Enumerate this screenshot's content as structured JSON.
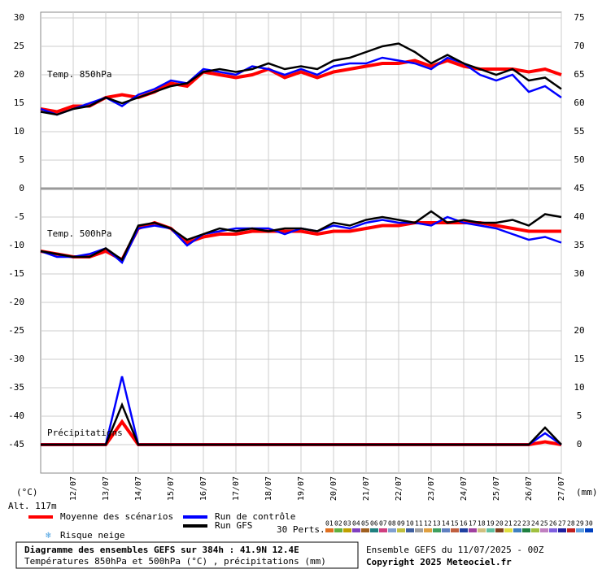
{
  "chart_data": {
    "type": "line",
    "title": "Diagramme des ensembles GEFS sur 384h : 41.9N 12.4E",
    "subtitle": "Températures 850hPa et 500hPa (°C) , précipitations (mm)",
    "run": "Ensemble GEFS du 11/07/2025 - 00Z",
    "copyright": "Copyright 2025 Meteociel.fr",
    "ylabel": "(°C)",
    "y2label": "(mm)",
    "altitude": "Alt. 117m",
    "ylim": [
      -50,
      31
    ],
    "yticks": [
      30,
      25,
      20,
      15,
      10,
      5,
      0,
      -5,
      -10,
      -15,
      -20,
      -25,
      -30,
      -35,
      -40,
      -45
    ],
    "y2ticks": [
      {
        "value": 30,
        "label": "75"
      },
      {
        "value": 25,
        "label": "70"
      },
      {
        "value": 20,
        "label": "65"
      },
      {
        "value": 15,
        "label": "60"
      },
      {
        "value": 10,
        "label": "55"
      },
      {
        "value": 5,
        "label": "50"
      },
      {
        "value": 0,
        "label": "45"
      },
      {
        "value": -5,
        "label": "40"
      },
      {
        "value": -10,
        "label": "35"
      },
      {
        "value": -15,
        "label": "30"
      }
    ],
    "xlim": [
      0,
      384
    ],
    "xticks": [
      {
        "value": 24,
        "label": "12/07"
      },
      {
        "value": 48,
        "label": "13/07"
      },
      {
        "value": 72,
        "label": "14/07"
      },
      {
        "value": 96,
        "label": "15/07"
      },
      {
        "value": 120,
        "label": "16/07"
      },
      {
        "value": 144,
        "label": "17/07"
      },
      {
        "value": 168,
        "label": "18/07"
      },
      {
        "value": 192,
        "label": "19/07"
      },
      {
        "value": 216,
        "label": "20/07"
      },
      {
        "value": 240,
        "label": "21/07"
      },
      {
        "value": 264,
        "label": "22/07"
      },
      {
        "value": 288,
        "label": "23/07"
      },
      {
        "value": 312,
        "label": "24/07"
      },
      {
        "value": 336,
        "label": "25/07"
      },
      {
        "value": 360,
        "label": "26/07"
      },
      {
        "value": 384,
        "label": "27/07"
      }
    ],
    "grid": true,
    "x": [
      0,
      12,
      24,
      36,
      48,
      60,
      72,
      84,
      96,
      108,
      120,
      132,
      144,
      156,
      168,
      180,
      192,
      204,
      216,
      228,
      240,
      252,
      264,
      276,
      288,
      300,
      312,
      324,
      336,
      348,
      360,
      372,
      384
    ],
    "legend": [
      {
        "name": "Moyenne des scénarios",
        "color": "#ff0000"
      },
      {
        "name": "Run de contrôle",
        "color": "#0000ff"
      },
      {
        "name": "Run GFS",
        "color": "#000000"
      }
    ],
    "snow": "Risque neige",
    "perturbations": {
      "label": "30 Perts.",
      "ids": [
        "01",
        "02",
        "03",
        "04",
        "05",
        "06",
        "07",
        "08",
        "09",
        "10",
        "11",
        "12",
        "13",
        "14",
        "15",
        "16",
        "17",
        "18",
        "19",
        "20",
        "21",
        "22",
        "23",
        "24",
        "25",
        "26",
        "27",
        "28",
        "29",
        "30"
      ],
      "colors": [
        "#e07020",
        "#60b040",
        "#c0a000",
        "#8040c0",
        "#a06020",
        "#208080",
        "#d04080",
        "#80a0d0",
        "#c0c040",
        "#4060a0",
        "#a0a0a0",
        "#e0a040",
        "#40a060",
        "#6080c0",
        "#c06040",
        "#2040a0",
        "#a040a0",
        "#d0c080",
        "#60c0a0",
        "#804020",
        "#e0e040",
        "#4080c0",
        "#208040",
        "#a0c040",
        "#c080c0",
        "#8060e0",
        "#2020a0",
        "#c02020",
        "#60a0e0",
        "#0040c0"
      ]
    },
    "panels": [
      {
        "label": "Temp. 850hPa",
        "series": [
          {
            "color": "#ff0000",
            "values": [
              14,
              13.5,
              14.5,
              14.5,
              16,
              16.5,
              16,
              17,
              18.5,
              18,
              20.5,
              20,
              19.5,
              20,
              21,
              19.5,
              20.5,
              19.5,
              20.5,
              21,
              21.5,
              22,
              22,
              22.5,
              21.5,
              22.5,
              21.5,
              21,
              21,
              21,
              20.5,
              21,
              20
            ]
          },
          {
            "color": "#0000ff",
            "values": [
              14,
              13,
              14,
              15,
              16,
              14.5,
              16.5,
              17.5,
              19,
              18.5,
              21,
              20.5,
              20,
              21.5,
              21,
              20,
              21,
              20,
              21.5,
              22,
              22,
              23,
              22.5,
              22,
              21,
              23,
              22,
              20,
              19,
              20,
              17,
              18,
              16
            ]
          },
          {
            "color": "#000000",
            "values": [
              13.5,
              13,
              14,
              14.5,
              16,
              15,
              16,
              17,
              18,
              18.5,
              20.5,
              21,
              20.5,
              21,
              22,
              21,
              21.5,
              21,
              22.5,
              23,
              24,
              25,
              25.5,
              24,
              22,
              23.5,
              22,
              21,
              20,
              21,
              19,
              19.5,
              17.5
            ]
          }
        ]
      },
      {
        "label": "Temp. 500hPa",
        "series": [
          {
            "color": "#ff0000",
            "values": [
              -11,
              -11.5,
              -12,
              -12,
              -11,
              -12.5,
              -7,
              -6,
              -7,
              -9.5,
              -8.5,
              -8,
              -8,
              -7.5,
              -7.5,
              -7.5,
              -7.5,
              -8,
              -7.5,
              -7.5,
              -7,
              -6.5,
              -6.5,
              -6,
              -6,
              -6,
              -6,
              -6,
              -6.5,
              -7,
              -7.5,
              -7.5,
              -7.5
            ]
          },
          {
            "color": "#0000ff",
            "values": [
              -11,
              -12,
              -12,
              -11.5,
              -10.5,
              -13,
              -7,
              -6.5,
              -7,
              -10,
              -8,
              -7.5,
              -7,
              -7,
              -7,
              -8,
              -7,
              -7.5,
              -6.5,
              -7,
              -6,
              -5.5,
              -6,
              -6,
              -6.5,
              -5,
              -6,
              -6.5,
              -7,
              -8,
              -9,
              -8.5,
              -9.5
            ]
          },
          {
            "color": "#000000",
            "values": [
              -11,
              -11.5,
              -12,
              -12,
              -10.5,
              -12.5,
              -6.5,
              -6,
              -7,
              -9,
              -8,
              -7,
              -7.5,
              -7,
              -7.5,
              -7,
              -7,
              -7.5,
              -6,
              -6.5,
              -5.5,
              -5,
              -5.5,
              -6,
              -4,
              -6,
              -5.5,
              -6,
              -6,
              -5.5,
              -6.5,
              -4.5,
              -5
            ]
          }
        ]
      },
      {
        "label": "Précipitations",
        "ylim": [
          0,
          20
        ],
        "yticks": [
          0,
          5,
          10,
          15,
          20
        ],
        "series": [
          {
            "color": "#ff0000",
            "values": [
              0,
              0,
              0,
              0,
              0,
              4,
              0,
              0,
              0,
              0,
              0,
              0,
              0,
              0,
              0,
              0,
              0,
              0,
              0,
              0,
              0,
              0,
              0,
              0,
              0,
              0,
              0,
              0,
              0,
              0,
              0,
              0.5,
              0
            ]
          },
          {
            "color": "#0000ff",
            "values": [
              0,
              0,
              0,
              0,
              0,
              12,
              0,
              0,
              0,
              0,
              0,
              0,
              0,
              0,
              0,
              0,
              0,
              0,
              0,
              0,
              0,
              0,
              0,
              0,
              0,
              0,
              0,
              0,
              0,
              0,
              0,
              2,
              0
            ]
          },
          {
            "color": "#000000",
            "values": [
              0,
              0,
              0,
              0,
              0,
              7,
              0,
              0,
              0,
              0,
              0,
              0,
              0,
              0,
              0,
              0,
              0,
              0,
              0,
              0,
              0,
              0,
              0,
              0,
              0,
              0,
              0,
              0,
              0,
              0,
              0,
              3,
              0
            ]
          }
        ]
      }
    ]
  }
}
